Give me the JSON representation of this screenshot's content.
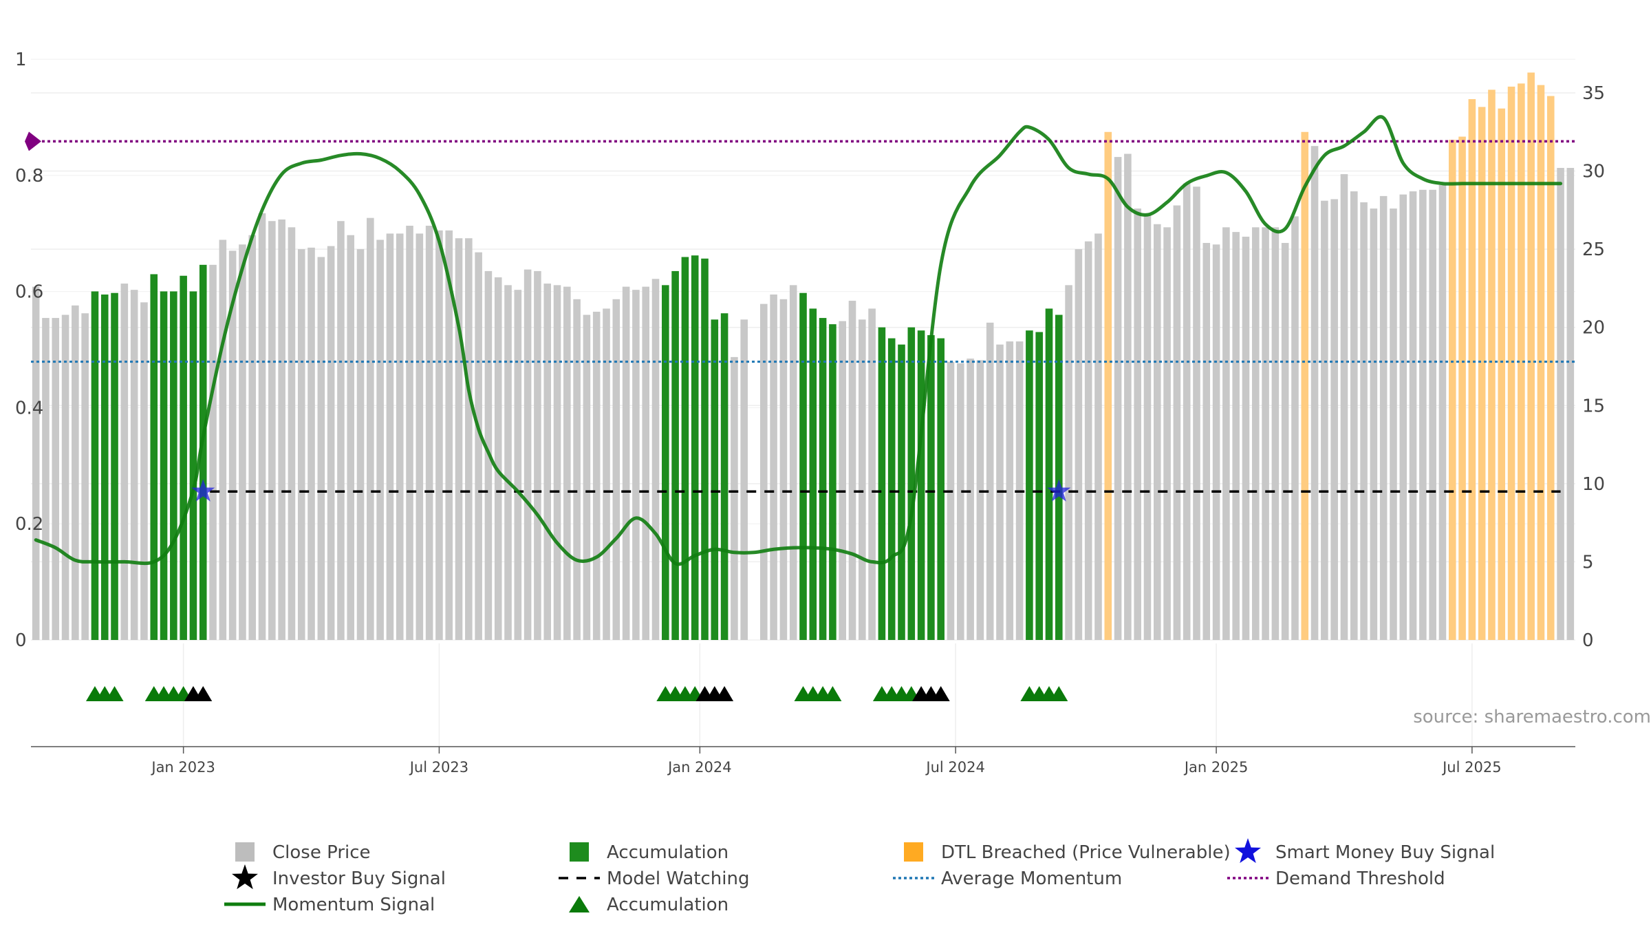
{
  "chart_data": {
    "type": "bar",
    "title": "",
    "source_text": "source: sharemaestro.com",
    "left_axis": {
      "ticks": [
        "0",
        "0.2",
        "0.4",
        "0.6",
        "0.8",
        "1"
      ],
      "range": [
        0,
        1
      ]
    },
    "right_axis": {
      "ticks": [
        "0",
        "5",
        "10",
        "15",
        "20",
        "25",
        "30",
        "35"
      ],
      "range": [
        0,
        38.3
      ]
    },
    "x_axis": {
      "ticks": [
        "Jan 2023",
        "Jul 2023",
        "Jan 2024",
        "Jul 2024",
        "Jan 2025",
        "Jul 2025"
      ]
    },
    "series": [
      {
        "name": "Close Price",
        "type": "bar",
        "values": [
          22.6,
          20.6,
          20.6,
          20.8,
          21.4,
          20.9,
          22.3,
          22.1,
          22.2,
          22.8,
          22.4,
          21.6,
          23.4,
          22.3,
          22.3,
          23.3,
          22.3,
          24.0,
          24.0,
          25.6,
          24.9,
          25.3,
          25.9,
          27.3,
          26.8,
          26.9,
          26.4,
          25.0,
          25.1,
          24.5,
          25.2,
          26.8,
          25.9,
          25.0,
          27.0,
          25.6,
          26.0,
          26.0,
          26.5,
          26.0,
          26.5,
          26.2,
          26.2,
          25.7,
          25.7,
          24.8,
          23.6,
          23.2,
          22.7,
          22.4,
          23.7,
          23.6,
          22.8,
          22.7,
          22.6,
          21.8,
          20.8,
          21.0,
          21.2,
          21.8,
          22.6,
          22.4,
          22.6,
          23.1,
          22.7,
          23.6,
          24.5,
          24.6,
          24.4,
          20.5,
          20.9,
          18.1,
          20.5,
          0,
          21.5,
          22.1,
          21.8,
          22.7,
          22.2,
          21.2,
          20.6,
          20.2,
          20.4,
          21.7,
          20.5,
          21.2,
          20.0,
          19.3,
          18.9,
          20.0,
          19.8,
          19.5,
          19.3,
          17.8,
          17.7,
          18.0,
          17.9,
          20.3,
          18.9,
          19.1,
          19.1,
          19.8,
          19.7,
          21.2,
          20.8,
          22.7,
          25.0,
          25.5,
          26.0,
          32.5,
          30.9,
          31.1,
          27.6,
          27.2,
          26.6,
          26.4,
          27.8,
          29.2,
          29.0,
          25.4,
          25.3,
          26.4,
          26.1,
          25.8,
          26.4,
          26.4,
          26.4,
          25.4,
          27.1,
          32.5,
          31.6,
          28.1,
          28.2,
          29.8,
          28.7,
          28.0,
          27.6,
          28.4,
          27.6,
          28.5,
          28.7,
          28.8,
          28.8,
          29.1,
          32.0,
          32.2,
          34.6,
          34.1,
          35.2,
          34.0,
          35.4,
          35.6,
          36.3,
          35.5,
          34.8,
          30.2,
          30.2
        ],
        "color": "#c8c8c8"
      },
      {
        "name": "Accumulation",
        "type": "bar-highlight",
        "indices": [
          6,
          7,
          8,
          12,
          13,
          14,
          15,
          16,
          17,
          64,
          65,
          66,
          67,
          68,
          69,
          70,
          78,
          79,
          80,
          81,
          86,
          87,
          88,
          89,
          90,
          91,
          92,
          101,
          102,
          103,
          104
        ],
        "color": "#1e8c1e"
      },
      {
        "name": "DTL Breached (Price Vulnerable)",
        "type": "bar-highlight",
        "indices": [
          109,
          129,
          144,
          145,
          146,
          147,
          148,
          149,
          150,
          151,
          152,
          153,
          154
        ],
        "color": "#ffcc80"
      },
      {
        "name": "Momentum Signal",
        "type": "line",
        "axis": "right",
        "x": [
          0,
          2,
          4,
          6,
          9,
          12,
          14,
          16,
          17,
          19,
          21,
          23,
          25,
          27,
          29,
          31,
          33,
          35,
          37,
          39,
          41,
          43,
          44,
          45,
          46,
          47,
          49,
          51,
          53,
          55,
          57,
          59,
          61,
          63,
          65,
          67,
          69,
          71,
          73,
          75,
          77,
          79,
          81,
          83,
          85,
          87,
          89,
          92,
          95,
          98,
          100,
          101,
          103,
          105,
          107,
          109,
          111,
          113,
          115,
          117,
          119,
          121,
          123,
          125,
          127,
          129,
          131,
          133,
          135,
          137,
          139,
          141,
          143,
          145,
          147,
          149,
          151,
          152,
          153,
          154,
          155
        ],
        "values": [
          6.4,
          5.9,
          5.1,
          5.0,
          5.0,
          5.0,
          6.3,
          9.6,
          13.0,
          19.0,
          23.8,
          27.5,
          29.8,
          30.5,
          30.7,
          31.0,
          31.1,
          30.8,
          30.0,
          28.5,
          25.5,
          20.0,
          16.0,
          13.5,
          12.0,
          10.8,
          9.5,
          8.0,
          6.2,
          5.1,
          5.3,
          6.5,
          7.8,
          6.8,
          4.9,
          5.4,
          5.8,
          5.6,
          5.6,
          5.8,
          5.9,
          5.9,
          5.8,
          5.5,
          5.0,
          5.3,
          8.0,
          24.0,
          29.0,
          31.0,
          32.5,
          32.8,
          32.0,
          30.2,
          29.8,
          29.5,
          27.7,
          27.2,
          28.0,
          29.2,
          29.7,
          29.9,
          28.7,
          26.6,
          26.3,
          29.0,
          31.0,
          31.6,
          32.5,
          33.4,
          30.5,
          29.5,
          29.2,
          29.2,
          29.2,
          29.2,
          29.2,
          29.2,
          29.2,
          29.2,
          29.2
        ],
        "color": "#0f7d0f"
      },
      {
        "name": "Model Watching",
        "type": "dashed-line",
        "axis": "right",
        "from_index": 17,
        "to_index": 156,
        "value": 9.5,
        "color": "#000000"
      },
      {
        "name": "Average Momentum",
        "type": "dotted-line",
        "axis": "right",
        "value": 17.8,
        "color": "#1f77b4"
      },
      {
        "name": "Demand Threshold",
        "type": "dotted-line",
        "axis": "right",
        "value": 31.9,
        "color": "#800080"
      },
      {
        "name": "Smart Money Buy Signal",
        "type": "marker",
        "indices": [
          17,
          104
        ],
        "value": 9.5,
        "color": "#2222dd"
      },
      {
        "name": "Accumulation",
        "type": "triangle-markers",
        "indices": [
          6,
          7,
          8,
          12,
          13,
          14,
          15,
          64,
          65,
          66,
          67,
          78,
          79,
          80,
          81,
          86,
          87,
          88,
          89,
          101,
          102,
          103,
          104
        ],
        "color": "#0a7a0a"
      },
      {
        "name": "Investor Buy Signal",
        "type": "triangle-markers",
        "indices": [
          16,
          17,
          68,
          69,
          70,
          90,
          91,
          92
        ],
        "color": "#000000"
      }
    ],
    "legend": {
      "placement": "bottom",
      "items": [
        {
          "label": "Close Price",
          "symbol": "square",
          "color": "#bdbdbd"
        },
        {
          "label": "Accumulation",
          "symbol": "square",
          "color": "#1e8c1e"
        },
        {
          "label": "DTL Breached (Price Vulnerable)",
          "symbol": "square",
          "color": "#ffaa22"
        },
        {
          "label": "Smart Money Buy Signal",
          "symbol": "star",
          "color": "#1111dd"
        },
        {
          "label": "Investor Buy Signal",
          "symbol": "star",
          "color": "#000000"
        },
        {
          "label": "Model Watching",
          "symbol": "dash",
          "color": "#000000"
        },
        {
          "label": "Average Momentum",
          "symbol": "dotted",
          "color": "#1f77b4"
        },
        {
          "label": "Demand Threshold",
          "symbol": "dotted",
          "color": "#800080"
        },
        {
          "label": "Momentum Signal",
          "symbol": "line",
          "color": "#0f7d0f"
        },
        {
          "label": "Accumulation",
          "symbol": "triangle",
          "color": "#0a7a0a"
        }
      ]
    }
  }
}
